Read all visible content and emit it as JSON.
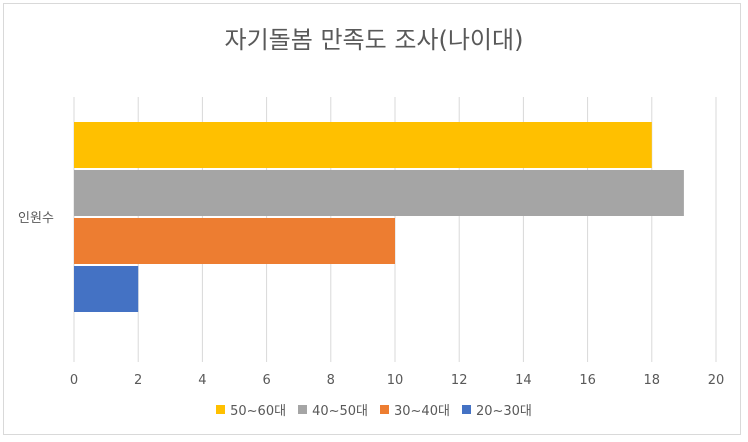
{
  "chart_data": {
    "type": "bar",
    "orientation": "horizontal",
    "title": "자기돌봄 만족도 조사(나이대)",
    "categories": [
      "인원수"
    ],
    "xlim": [
      0,
      20
    ],
    "x_ticks": [
      "0",
      "2",
      "4",
      "6",
      "8",
      "10",
      "12",
      "14",
      "16",
      "18",
      "20"
    ],
    "grid": true,
    "legend_position": "bottom",
    "series": [
      {
        "name": "50~60대",
        "values": [
          18
        ],
        "color": "#FFC000"
      },
      {
        "name": "40~50대",
        "values": [
          19
        ],
        "color": "#A5A5A5"
      },
      {
        "name": "30~40대",
        "values": [
          10
        ],
        "color": "#ED7D31"
      },
      {
        "name": "20~30대",
        "values": [
          2
        ],
        "color": "#4472C4"
      }
    ]
  }
}
